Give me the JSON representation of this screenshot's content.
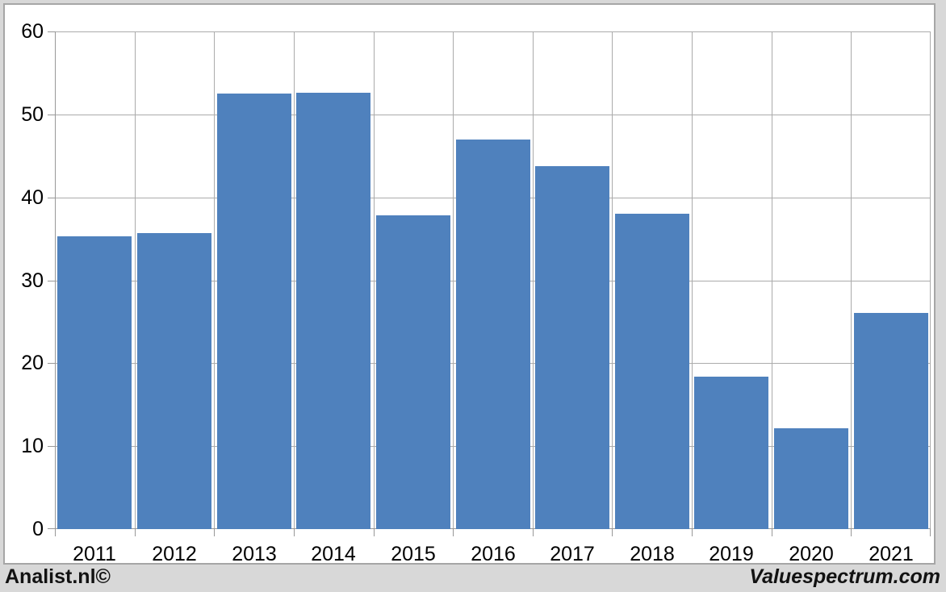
{
  "chart_data": {
    "type": "bar",
    "categories": [
      "2011",
      "2012",
      "2013",
      "2014",
      "2015",
      "2016",
      "2017",
      "2018",
      "2019",
      "2020",
      "2021"
    ],
    "values": [
      35.3,
      35.7,
      52.5,
      52.6,
      37.8,
      47.0,
      43.8,
      38.0,
      18.4,
      12.2,
      26.1
    ],
    "title": "",
    "xlabel": "",
    "ylabel": "",
    "ylim": [
      0,
      60
    ],
    "y_ticks": [
      0,
      10,
      20,
      30,
      40,
      50,
      60
    ],
    "grid": true,
    "legend": "none",
    "bar_color": "#4f81bd",
    "gridline_color": "#ababab",
    "axis_color": "#989898",
    "plot_bg": "#ffffff",
    "panel_bg": "#d8d8d8"
  },
  "footer": {
    "left_text": "Analist.nl©",
    "right_text": "Valuespectrum.com"
  }
}
